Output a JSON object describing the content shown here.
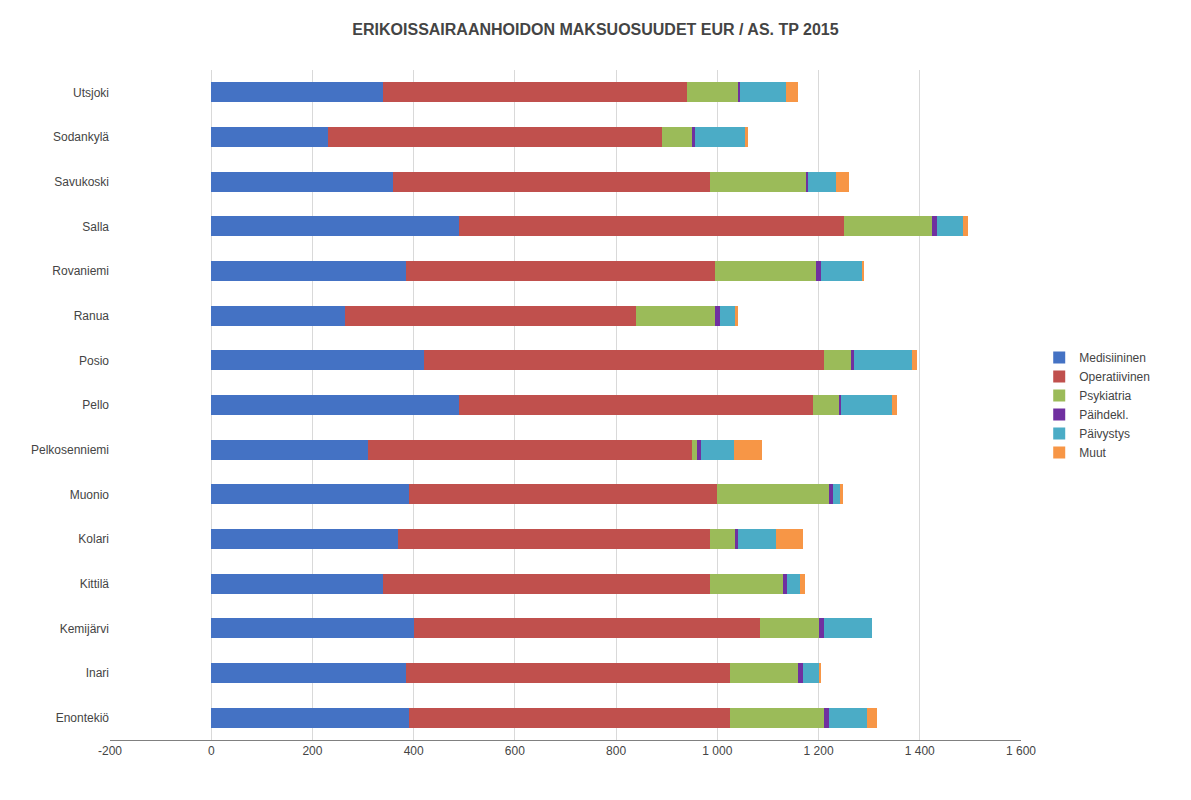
{
  "chart_data": {
    "type": "bar",
    "orientation": "horizontal",
    "stacked": true,
    "title": "ERIKOISSAIRAANHOIDON MAKSUOSUUDET EUR / AS. TP 2015",
    "categories": [
      "Utsjoki",
      "Sodankylä",
      "Savukoski",
      "Salla",
      "Rovaniemi",
      "Ranua",
      "Posio",
      "Pello",
      "Pelkosenniemi",
      "Muonio",
      "Kolari",
      "Kittilä",
      "Kemijärvi",
      "Inari",
      "Enontekiö"
    ],
    "series": [
      {
        "name": "Medisiininen",
        "color": "#4472C4",
        "values": [
          340,
          230,
          360,
          490,
          385,
          265,
          420,
          490,
          310,
          390,
          370,
          340,
          400,
          385,
          390
        ]
      },
      {
        "name": "Operatiivinen",
        "color": "#C0504D",
        "values": [
          600,
          660,
          625,
          760,
          610,
          575,
          790,
          700,
          640,
          610,
          615,
          645,
          685,
          640,
          635
        ]
      },
      {
        "name": "Psykiatria",
        "color": "#9BBB59",
        "values": [
          100,
          60,
          190,
          175,
          200,
          155,
          55,
          50,
          10,
          220,
          50,
          145,
          115,
          135,
          185
        ]
      },
      {
        "name": "Päihdekl.",
        "color": "#7030A0",
        "values": [
          5,
          5,
          5,
          10,
          10,
          10,
          5,
          5,
          8,
          8,
          5,
          8,
          10,
          10,
          10
        ]
      },
      {
        "name": "Päivystys",
        "color": "#4BACC6",
        "values": [
          90,
          100,
          55,
          50,
          80,
          30,
          115,
          100,
          65,
          15,
          75,
          25,
          95,
          30,
          75
        ]
      },
      {
        "name": "Muut",
        "color": "#F79646",
        "values": [
          25,
          5,
          25,
          10,
          5,
          5,
          10,
          10,
          55,
          5,
          55,
          10,
          0,
          5,
          20
        ]
      }
    ],
    "xlim": [
      -200,
      1600
    ],
    "xticks": [
      -200,
      0,
      200,
      400,
      600,
      800,
      {
        "value": 1000,
        "label": "1 000"
      },
      {
        "value": 1200,
        "label": "1 200"
      },
      {
        "value": 1400,
        "label": "1 400"
      },
      {
        "value": 1600,
        "label": "1 600"
      }
    ],
    "grid": true,
    "legend": "right"
  }
}
